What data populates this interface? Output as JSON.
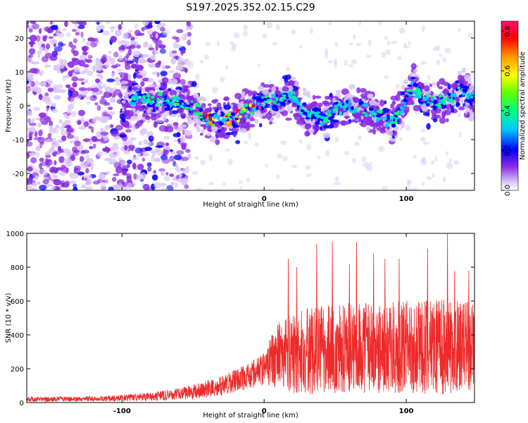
{
  "figure": {
    "title": "S197.2025.352.02.15.C29",
    "colors": {
      "snr_line": "#ee2a2a",
      "axis": "#000000",
      "background": "#ffffff"
    }
  },
  "chart_data": [
    {
      "type": "heatmap",
      "name": "spectrogram",
      "title": "S197.2025.352.02.15.C29",
      "xlabel": "Height of straight line (km)",
      "ylabel": "Frequency (Hz)",
      "xlim": [
        -167,
        148
      ],
      "ylim": [
        -25,
        25
      ],
      "xticks": [
        -100,
        0,
        100
      ],
      "xtick_labels": [
        "-100",
        "0",
        "100"
      ],
      "yticks": [
        -20,
        -10,
        0,
        10,
        20
      ],
      "ytick_labels": [
        "-20",
        "-10",
        "0",
        "10",
        "20"
      ],
      "colorbar": {
        "label": "Normalized spectral amplitude",
        "range": [
          0,
          0.85
        ],
        "ticks": [
          0,
          0.2,
          0.4,
          0.6,
          0.8
        ],
        "tick_labels": [
          "0.0",
          "0.2",
          "0.4",
          "0.6",
          "0.8"
        ],
        "colormap": [
          "#ffffff",
          "#d9c6f5",
          "#8a2be2",
          "#0000ff",
          "#00c8ff",
          "#00ff80",
          "#66ff00",
          "#ffff00",
          "#ff9900",
          "#ff0000",
          "#ff1070"
        ]
      },
      "ridge": {
        "description": "dominant frequency trace versus height",
        "x": [
          -98,
          -90,
          -80,
          -70,
          -60,
          -50,
          -40,
          -30,
          -20,
          -10,
          0,
          10,
          20,
          30,
          40,
          50,
          60,
          70,
          80,
          90,
          100,
          105,
          110,
          120,
          130,
          140,
          145
        ],
        "y": [
          0,
          3,
          1,
          2,
          1,
          0,
          -4,
          -5,
          -3,
          -1,
          1,
          2,
          3,
          -3,
          -4,
          -1,
          0,
          -1,
          -3,
          -5,
          2,
          7,
          2,
          1,
          2,
          5,
          2
        ]
      }
    },
    {
      "type": "line",
      "name": "snr",
      "xlabel": "Height of straight line (km)",
      "ylabel": "SNR (10 * v/v)",
      "xlim": [
        -167,
        148
      ],
      "ylim": [
        0,
        1000
      ],
      "xticks": [
        -100,
        0,
        100
      ],
      "xtick_labels": [
        "-100",
        "0",
        "100"
      ],
      "yticks": [
        0,
        200,
        400,
        600,
        800,
        1000
      ],
      "ytick_labels": [
        "0",
        "200",
        "400",
        "600",
        "800",
        "1000"
      ],
      "series": [
        {
          "name": "SNR",
          "color": "#ee2a2a",
          "envelope_x": [
            -167,
            -140,
            -120,
            -100,
            -80,
            -60,
            -40,
            -30,
            -20,
            -10,
            0,
            5,
            10,
            20,
            40,
            60,
            80,
            100,
            120,
            140,
            148
          ],
          "envelope_mid": [
            20,
            20,
            22,
            25,
            35,
            50,
            80,
            100,
            130,
            160,
            200,
            250,
            280,
            300,
            310,
            320,
            320,
            330,
            330,
            330,
            320
          ],
          "envelope_spread": [
            15,
            15,
            15,
            20,
            25,
            35,
            50,
            60,
            70,
            80,
            100,
            150,
            200,
            250,
            260,
            270,
            270,
            280,
            280,
            280,
            270
          ],
          "peaks": [
            {
              "x": 17,
              "y": 850
            },
            {
              "x": 23,
              "y": 800
            },
            {
              "x": 37,
              "y": 940
            },
            {
              "x": 48,
              "y": 950
            },
            {
              "x": 60,
              "y": 820
            },
            {
              "x": 65,
              "y": 950
            },
            {
              "x": 77,
              "y": 880
            },
            {
              "x": 85,
              "y": 850
            },
            {
              "x": 95,
              "y": 850
            },
            {
              "x": 115,
              "y": 910
            },
            {
              "x": 129,
              "y": 1000
            },
            {
              "x": 134,
              "y": 780
            },
            {
              "x": 144,
              "y": 780
            }
          ]
        }
      ]
    }
  ]
}
